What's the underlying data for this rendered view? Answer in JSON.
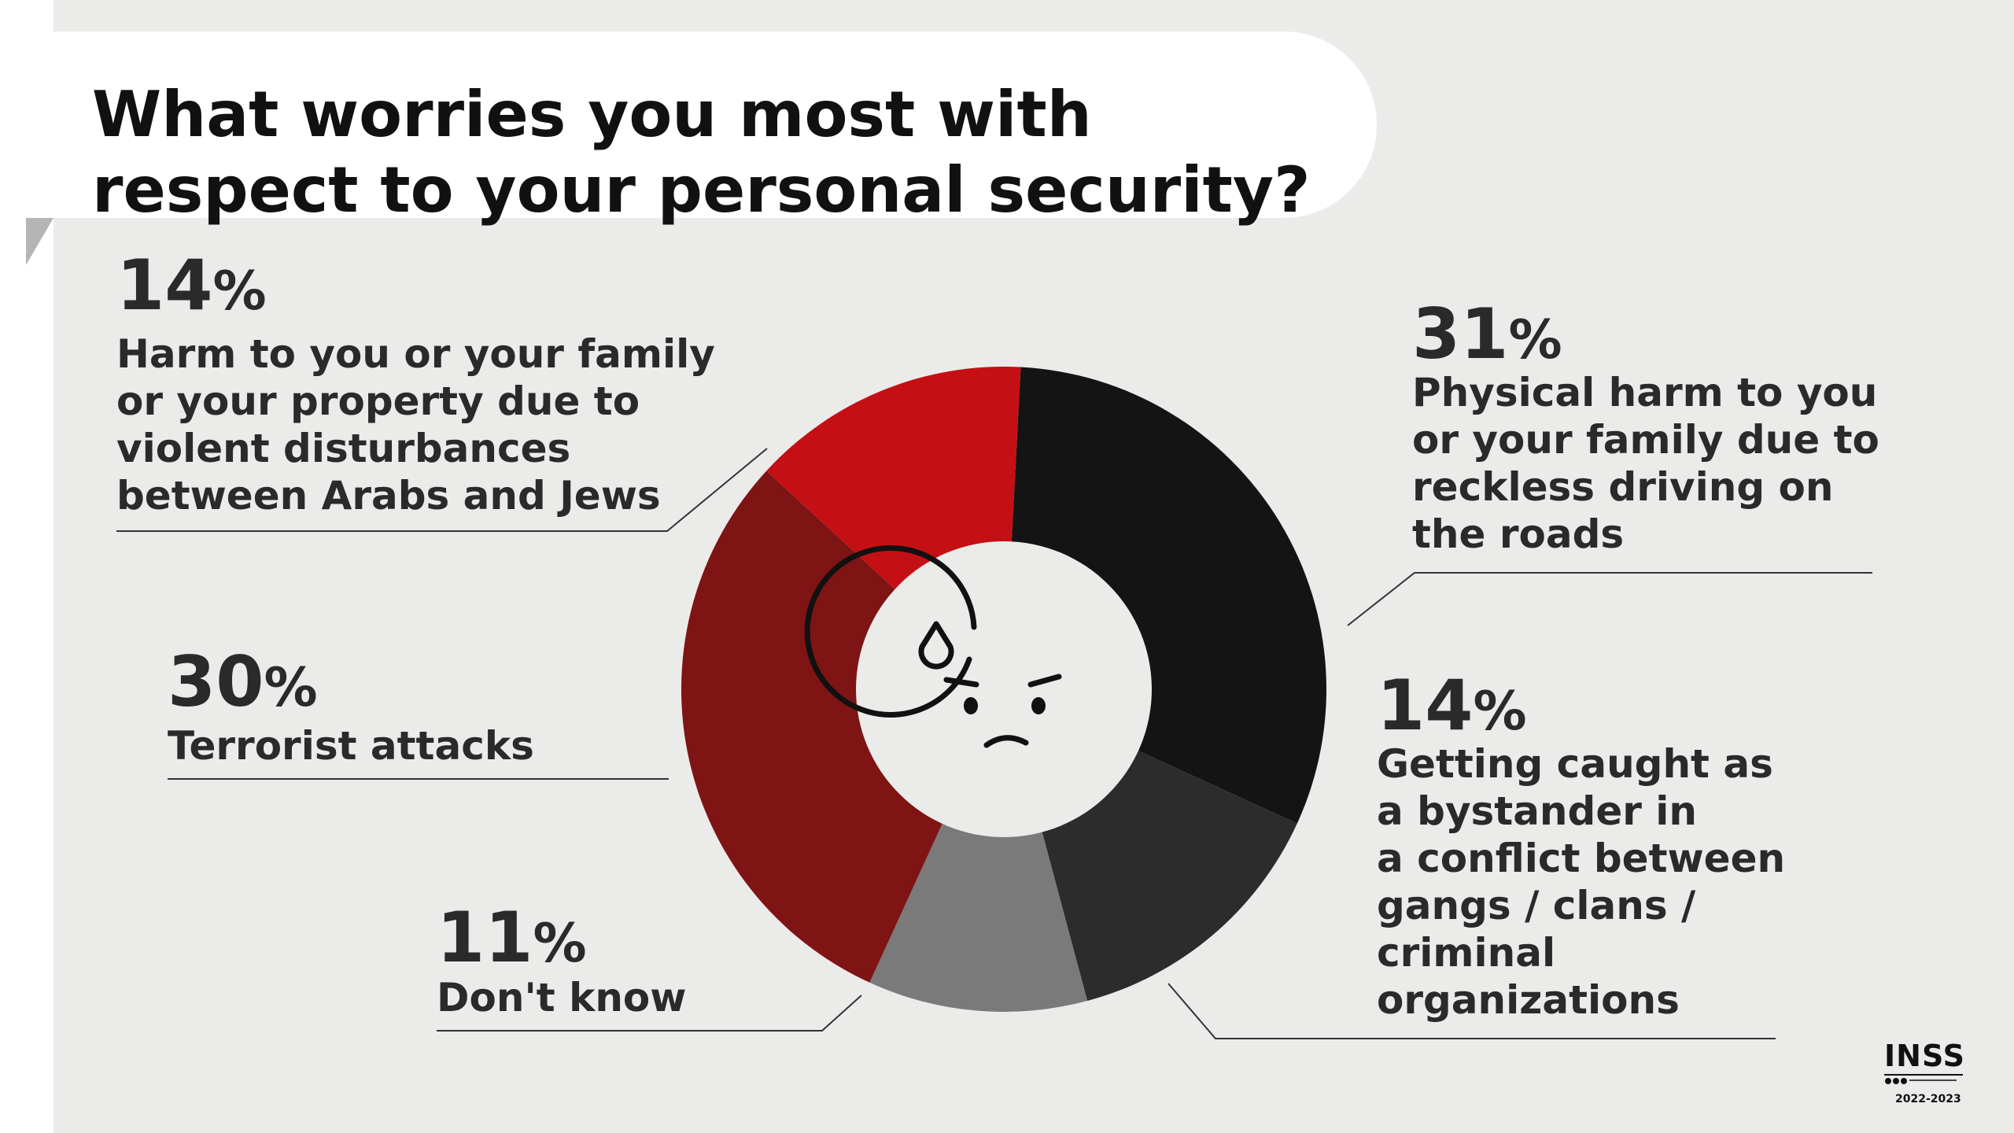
{
  "title": "What worries you most with respect to your personal security?",
  "chart_data": {
    "type": "pie",
    "variant": "donut",
    "slices": [
      {
        "label": "Physical harm to you or your family due to reckless driving on the roads",
        "value": 31,
        "value_text": "31",
        "color": "#141414"
      },
      {
        "label": "Getting caught as a bystander in a conflict between gangs / clans / criminal organizations",
        "value": 14,
        "value_text": "14",
        "color": "#2c2c2c"
      },
      {
        "label": "Don't know",
        "value": 11,
        "value_text": "11",
        "color": "#7a7a7a"
      },
      {
        "label": "Terrorist attacks",
        "value": 30,
        "value_text": "30",
        "color": "#7e1414"
      },
      {
        "label": "Harm to you or your family or your property due to violent disturbances between Arabs and Jews",
        "value": 14,
        "value_text": "14",
        "color": "#c41014"
      }
    ],
    "percent_sign": "%",
    "center_icon": "worried-face-icon"
  },
  "annotations": {
    "road": {
      "pct": "31",
      "label": [
        "Physical harm to you",
        "or your family due to",
        "reckless driving on",
        "the roads"
      ]
    },
    "gangs": {
      "pct": "14",
      "label": [
        "Getting caught as",
        "a bystander in",
        "a conflict between",
        "gangs / clans /",
        "criminal",
        "organizations"
      ]
    },
    "dontknow": {
      "pct": "11",
      "label": [
        "Don't know"
      ]
    },
    "terror": {
      "pct": "30",
      "label": [
        "Terrorist attacks"
      ]
    },
    "riots": {
      "pct": "14",
      "label": [
        "Harm to you or your family",
        "or your property due to",
        "violent disturbances",
        "between Arabs and Jews"
      ]
    }
  },
  "logo": {
    "wordmark": "INSS",
    "year": "2022-2023"
  }
}
